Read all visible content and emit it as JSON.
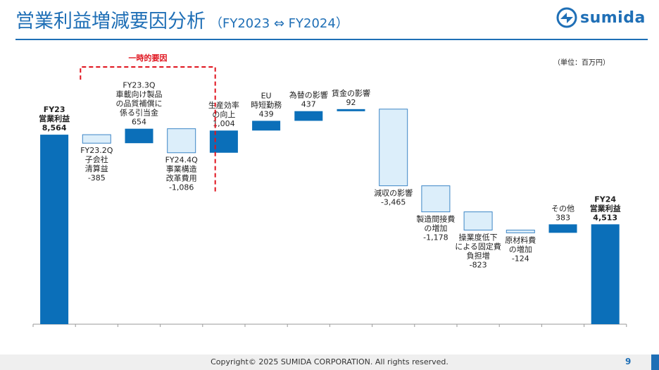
{
  "header": {
    "title": "営業利益増減要因分析",
    "subtitle": "（FY2023 ⇔ FY2024）"
  },
  "brand": {
    "name": "sumida",
    "logo_icon": "sumida-logo-icon"
  },
  "unit_note": "（単位：百万円）",
  "footer": {
    "copyright": "Copyright© 2025 SUMIDA CORPORATION. All rights reserved.",
    "page": "9"
  },
  "colors": {
    "accent": "#1f6fb6",
    "increase": "#0b6fb9",
    "decrease_fill": "#dceefa",
    "decrease_stroke": "#3d86c6",
    "bracket": "#e0141e"
  },
  "chart_data": {
    "type": "waterfall",
    "unit": "百万円",
    "bracket_label": "一時的要因",
    "items": [
      {
        "label": [
          "FY23",
          "営業利益"
        ],
        "value_label": "8,564",
        "value": 8564,
        "kind": "total"
      },
      {
        "label": [
          "FY23.2Q",
          "子会社",
          "清算益"
        ],
        "value_label": "-385",
        "value": -385,
        "kind": "decrease"
      },
      {
        "label": [
          "FY23.3Q",
          "車載向け製品",
          "の品質補償に",
          "係る引当金"
        ],
        "value_label": "654",
        "value": 654,
        "kind": "increase"
      },
      {
        "label": [
          "FY24.4Q",
          "事業構造",
          "改革費用"
        ],
        "value_label": "-1,086",
        "value": -1086,
        "kind": "decrease"
      },
      {
        "label": [
          "生産効率",
          "の向上"
        ],
        "value_label": "1,004",
        "value": 1004,
        "kind": "increase"
      },
      {
        "label": [
          "EU",
          "時短勤務"
        ],
        "value_label": "439",
        "value": 439,
        "kind": "increase"
      },
      {
        "label": [
          "為替の影響"
        ],
        "value_label": "437",
        "value": 437,
        "kind": "increase"
      },
      {
        "label": [
          "賃金の影響"
        ],
        "value_label": "92",
        "value": 92,
        "kind": "increase"
      },
      {
        "label": [
          "減収の影響"
        ],
        "value_label": "-3,465",
        "value": -3465,
        "kind": "decrease"
      },
      {
        "label": [
          "製造間接費",
          "の増加"
        ],
        "value_label": "-1,178",
        "value": -1178,
        "kind": "decrease"
      },
      {
        "label": [
          "操業度低下",
          "による固定費",
          "負担増"
        ],
        "value_label": "-823",
        "value": -823,
        "kind": "decrease"
      },
      {
        "label": [
          "原材料費",
          "の増加"
        ],
        "value_label": "-124",
        "value": -124,
        "kind": "decrease"
      },
      {
        "label": [
          "その他"
        ],
        "value_label": "383",
        "value": 383,
        "kind": "increase"
      },
      {
        "label": [
          "FY24",
          "営業利益"
        ],
        "value_label": "4,513",
        "value": 4513,
        "kind": "total"
      }
    ]
  }
}
